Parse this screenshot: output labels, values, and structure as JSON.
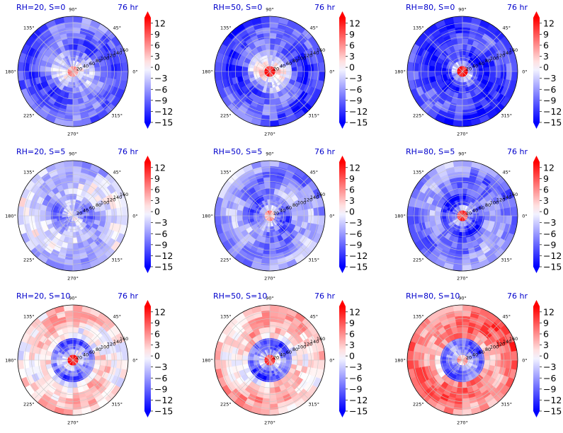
{
  "figure": {
    "colors": {
      "title": "#0000cc",
      "negative": "#0000ff",
      "neutral": "#ffffff",
      "positive": "#ff0000",
      "grid": "#c8c8c8",
      "frame": "#000000"
    }
  },
  "chart_data": [
    {
      "type": "heatmap",
      "projection": "polar",
      "title": "RH=20, S=0",
      "time_label": "76 hr",
      "angle_ticks": [
        "0°",
        "45°",
        "90°",
        "135°",
        "180°",
        "225°",
        "270°",
        "315°"
      ],
      "radial_ticks": [
        "20",
        "40",
        "60",
        "80",
        "100",
        "120",
        "140",
        "160"
      ],
      "rlim": [
        0,
        160
      ],
      "colorbar": {
        "ticks": [
          "12",
          "9",
          "6",
          "3",
          "0",
          "−3",
          "−6",
          "−9",
          "−12",
          "−15"
        ],
        "range": [
          -15,
          13.5
        ],
        "extend": "both"
      },
      "field_summary": {
        "background": -9,
        "ring": -5,
        "center": 5
      }
    },
    {
      "type": "heatmap",
      "projection": "polar",
      "title": "RH=50, S=0",
      "time_label": "76 hr",
      "angle_ticks": [
        "0°",
        "45°",
        "90°",
        "135°",
        "180°",
        "225°",
        "270°",
        "315°"
      ],
      "radial_ticks": [
        "20",
        "40",
        "60",
        "80",
        "100",
        "120",
        "140",
        "160"
      ],
      "rlim": [
        0,
        160
      ],
      "colorbar": {
        "ticks": [
          "12",
          "9",
          "6",
          "3",
          "0",
          "−3",
          "−6",
          "−9",
          "−12",
          "−15"
        ],
        "range": [
          -15,
          13.5
        ],
        "extend": "both"
      },
      "field_summary": {
        "background": -10,
        "ring": -4,
        "center": 12
      }
    },
    {
      "type": "heatmap",
      "projection": "polar",
      "title": "RH=80, S=0",
      "time_label": "76 hr",
      "angle_ticks": [
        "0°",
        "45°",
        "90°",
        "135°",
        "180°",
        "225°",
        "270°",
        "315°"
      ],
      "radial_ticks": [
        "20",
        "40",
        "60",
        "80",
        "100",
        "120",
        "140",
        "160"
      ],
      "rlim": [
        0,
        160
      ],
      "colorbar": {
        "ticks": [
          "12",
          "9",
          "6",
          "3",
          "0",
          "−3",
          "−6",
          "−9",
          "−12",
          "−15"
        ],
        "range": [
          -15,
          13.5
        ],
        "extend": "both"
      },
      "field_summary": {
        "background": -11,
        "ring": -13,
        "center": 13
      }
    },
    {
      "type": "heatmap",
      "projection": "polar",
      "title": "RH=20, S=5",
      "time_label": "76 hr",
      "angle_ticks": [
        "0°",
        "45°",
        "90°",
        "135°",
        "180°",
        "225°",
        "270°",
        "315°"
      ],
      "radial_ticks": [
        "20",
        "40",
        "60",
        "80",
        "100",
        "120",
        "140",
        "160"
      ],
      "rlim": [
        0,
        160
      ],
      "colorbar": {
        "ticks": [
          "12",
          "9",
          "6",
          "3",
          "0",
          "−3",
          "−6",
          "−9",
          "−12",
          "−15"
        ],
        "range": [
          -15,
          13.5
        ],
        "extend": "both"
      },
      "field_summary": {
        "background": -3,
        "ring": -6,
        "center": -2
      }
    },
    {
      "type": "heatmap",
      "projection": "polar",
      "title": "RH=50, S=5",
      "time_label": "76 hr",
      "angle_ticks": [
        "0°",
        "45°",
        "90°",
        "135°",
        "180°",
        "225°",
        "270°",
        "315°"
      ],
      "radial_ticks": [
        "20",
        "40",
        "60",
        "80",
        "100",
        "120",
        "140",
        "160"
      ],
      "rlim": [
        0,
        160
      ],
      "colorbar": {
        "ticks": [
          "12",
          "9",
          "6",
          "3",
          "0",
          "−3",
          "−6",
          "−9",
          "−12",
          "−15"
        ],
        "range": [
          -15,
          13.5
        ],
        "extend": "both"
      },
      "field_summary": {
        "background": -6,
        "ring": -9,
        "center": 4
      }
    },
    {
      "type": "heatmap",
      "projection": "polar",
      "title": "RH=80, S=5",
      "time_label": "76 hr",
      "angle_ticks": [
        "0°",
        "45°",
        "90°",
        "135°",
        "180°",
        "225°",
        "270°",
        "315°"
      ],
      "radial_ticks": [
        "20",
        "40",
        "60",
        "80",
        "100",
        "120",
        "140",
        "160"
      ],
      "rlim": [
        0,
        160
      ],
      "colorbar": {
        "ticks": [
          "12",
          "9",
          "6",
          "3",
          "0",
          "−3",
          "−6",
          "−9",
          "−12",
          "−15"
        ],
        "range": [
          -15,
          13.5
        ],
        "extend": "both"
      },
      "field_summary": {
        "background": -7,
        "ring": -12,
        "center": 10
      }
    },
    {
      "type": "heatmap",
      "projection": "polar",
      "title": "RH=20, S=10",
      "time_label": "76 hr",
      "angle_ticks": [
        "0°",
        "45°",
        "90°",
        "135°",
        "180°",
        "225°",
        "270°",
        "315°"
      ],
      "radial_ticks": [
        "20",
        "40",
        "60",
        "80",
        "100",
        "120",
        "140",
        "160"
      ],
      "rlim": [
        0,
        160
      ],
      "colorbar": {
        "ticks": [
          "12",
          "9",
          "6",
          "3",
          "0",
          "−3",
          "−6",
          "−9",
          "−12",
          "−15"
        ],
        "range": [
          -15,
          13.5
        ],
        "extend": "both"
      },
      "field_summary": {
        "background": 2,
        "ring": -9,
        "center": 12
      }
    },
    {
      "type": "heatmap",
      "projection": "polar",
      "title": "RH=50, S=10",
      "time_label": "76 hr",
      "angle_ticks": [
        "0°",
        "45°",
        "90°",
        "135°",
        "180°",
        "225°",
        "270°",
        "315°"
      ],
      "radial_ticks": [
        "20",
        "40",
        "60",
        "80",
        "100",
        "120",
        "140",
        "160"
      ],
      "rlim": [
        0,
        160
      ],
      "colorbar": {
        "ticks": [
          "12",
          "9",
          "6",
          "3",
          "0",
          "−3",
          "−6",
          "−9",
          "−12",
          "−15"
        ],
        "range": [
          -15,
          13.5
        ],
        "extend": "both"
      },
      "field_summary": {
        "background": 3,
        "ring": -10,
        "center": 10
      }
    },
    {
      "type": "heatmap",
      "projection": "polar",
      "title": "RH=80, S=10",
      "time_label": "76 hr",
      "angle_ticks": [
        "0°",
        "45°",
        "90°",
        "135°",
        "180°",
        "225°",
        "270°",
        "315°"
      ],
      "radial_ticks": [
        "20",
        "40",
        "60",
        "80",
        "100",
        "120",
        "140",
        "160"
      ],
      "rlim": [
        0,
        160
      ],
      "colorbar": {
        "ticks": [
          "12",
          "9",
          "6",
          "3",
          "0",
          "−3",
          "−6",
          "−9",
          "−12",
          "−15"
        ],
        "range": [
          -15,
          13.5
        ],
        "extend": "both"
      },
      "field_summary": {
        "background": 7,
        "ring": -9,
        "center": 4
      }
    }
  ]
}
